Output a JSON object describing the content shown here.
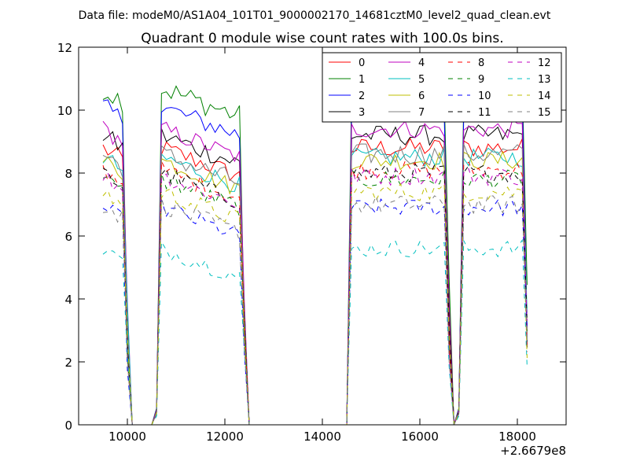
{
  "suptitle": "Data file: modeM0/AS1A04_101T01_9000002170_14681cztM0_level2_quad_clean.evt",
  "chart_data": {
    "type": "line",
    "title": "Quadrant 0 module wise count rates with 100.0s bins.",
    "xlabel": "",
    "ylabel": "",
    "x_offset_label": "+2.6679e8",
    "xlim": [
      9000,
      19000
    ],
    "ylim": [
      0,
      12
    ],
    "xticks": [
      10000,
      12000,
      14000,
      16000,
      18000
    ],
    "yticks": [
      0,
      2,
      4,
      6,
      8,
      10,
      12
    ],
    "grid": false,
    "legend_position": "top-right",
    "legend_columns": 4,
    "series": [
      {
        "name": "0",
        "color": "#ff0000",
        "dashed": false,
        "base": 8.8,
        "noise": 0.32
      },
      {
        "name": "1",
        "color": "#008000",
        "dashed": false,
        "base": 10.7,
        "noise": 0.38
      },
      {
        "name": "2",
        "color": "#0000ff",
        "dashed": false,
        "base": 10.1,
        "noise": 0.33
      },
      {
        "name": "3",
        "color": "#000000",
        "dashed": false,
        "base": 9.2,
        "noise": 0.33
      },
      {
        "name": "4",
        "color": "#bf00bf",
        "dashed": false,
        "base": 9.4,
        "noise": 0.3
      },
      {
        "name": "5",
        "color": "#00bfbf",
        "dashed": false,
        "base": 8.5,
        "noise": 0.3
      },
      {
        "name": "6",
        "color": "#bfbf00",
        "dashed": false,
        "base": 8.4,
        "noise": 0.3
      },
      {
        "name": "7",
        "color": "#808080",
        "dashed": false,
        "base": 8.6,
        "noise": 0.35
      },
      {
        "name": "8",
        "color": "#ff0000",
        "dashed": true,
        "base": 8.1,
        "noise": 0.3
      },
      {
        "name": "9",
        "color": "#008000",
        "dashed": true,
        "base": 7.8,
        "noise": 0.3
      },
      {
        "name": "10",
        "color": "#0000ff",
        "dashed": true,
        "base": 6.9,
        "noise": 0.28
      },
      {
        "name": "11",
        "color": "#000000",
        "dashed": true,
        "base": 8.0,
        "noise": 0.3
      },
      {
        "name": "12",
        "color": "#bf00bf",
        "dashed": true,
        "base": 7.9,
        "noise": 0.3
      },
      {
        "name": "13",
        "color": "#00bfbf",
        "dashed": true,
        "base": 5.6,
        "noise": 0.28
      },
      {
        "name": "14",
        "color": "#bfbf00",
        "dashed": true,
        "base": 7.4,
        "noise": 0.3
      },
      {
        "name": "15",
        "color": "#808080",
        "dashed": true,
        "base": 7.0,
        "noise": 0.3
      }
    ],
    "x_start": 9500,
    "x_end": 18200,
    "bin": 100,
    "active_intervals": [
      [
        9500,
        9900
      ],
      [
        10700,
        12300
      ],
      [
        14600,
        16500
      ],
      [
        16900,
        18100
      ]
    ],
    "zero_intervals": [
      [
        10100,
        10500
      ],
      [
        12500,
        14500
      ],
      [
        16700,
        16700
      ]
    ]
  }
}
